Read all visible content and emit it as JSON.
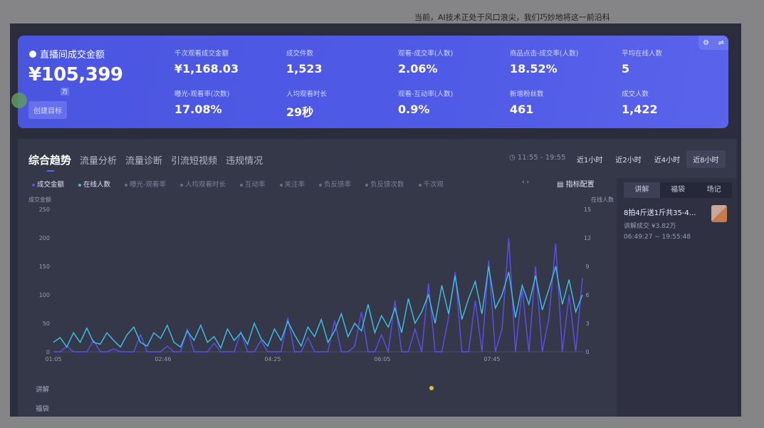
{
  "caption": "当前，AI技术正处于风口浪尖，我们巧妙地将这一前沿科",
  "summary": {
    "title": "直播间成交金额",
    "value": "¥105,399",
    "unit": "万",
    "goal_button": "创建目标",
    "metrics": [
      {
        "label": "千次观看成交金额",
        "value": "¥1,168.03"
      },
      {
        "label": "成交件数",
        "value": "1,523"
      },
      {
        "label": "观看-成交率(人数)",
        "value": "2.06%"
      },
      {
        "label": "商品点击-成交率(人数)",
        "value": "18.52%"
      },
      {
        "label": "平均在线人数",
        "value": "5"
      },
      {
        "label": "曝光-观看率(次数)",
        "value": "17.08%"
      },
      {
        "label": "人均观看时长",
        "value": "29秒"
      },
      {
        "label": "观看-互动率(人数)",
        "value": "0.9%"
      },
      {
        "label": "新增粉丝数",
        "value": "461"
      },
      {
        "label": "成交人数",
        "value": "1,422"
      }
    ]
  },
  "tabs": [
    "综合趋势",
    "流量分析",
    "流量诊断",
    "引流短视频",
    "违规情况"
  ],
  "time_range": "11:55 - 19:55",
  "range_buttons": [
    "近1小时",
    "近2小时",
    "近4小时",
    "近8小时"
  ],
  "selected_range": "近8小时",
  "legend": [
    {
      "label": "成交金额",
      "on": true
    },
    {
      "label": "在线人数",
      "on": true
    },
    {
      "label": "曝光-观看率",
      "on": false
    },
    {
      "label": "人均观看时长",
      "on": false
    },
    {
      "label": "互动率",
      "on": false
    },
    {
      "label": "关注率",
      "on": false
    },
    {
      "label": "负反馈率",
      "on": false
    },
    {
      "label": "负反馈次数",
      "on": false
    },
    {
      "label": "千次观",
      "on": false
    }
  ],
  "config_label": "指标配置",
  "side": {
    "tabs": [
      "讲解",
      "福袋",
      "场记"
    ],
    "item": {
      "title": "8拍4斤送1斤共35-4...",
      "sales": "讲解成交 ¥3.82万",
      "time": "06:49:27 ~ 19:55:48"
    }
  },
  "row_labels": [
    "讲解",
    "福袋"
  ],
  "colors": {
    "amount": "#5b4ff0",
    "online": "#3fc2e8",
    "card": "#4a55e0"
  },
  "chart_data": {
    "type": "line",
    "y_left_label": "成交金额",
    "y_right_label": "在线人数",
    "y_left_ticks": [
      "250",
      "200",
      "150",
      "100",
      "50",
      "0"
    ],
    "y_left_range": [
      0,
      250
    ],
    "y_right_ticks": [
      "15",
      "12",
      "9",
      "6",
      "3",
      "0"
    ],
    "y_right_range": [
      0,
      15
    ],
    "x_ticks": [
      "01:05",
      "02:46",
      "04:25",
      "06:05",
      "07:45"
    ],
    "series": [
      {
        "name": "成交金额",
        "axis": "left",
        "values": [
          0,
          0,
          10,
          0,
          0,
          0,
          20,
          0,
          0,
          5,
          0,
          0,
          0,
          30,
          0,
          0,
          0,
          10,
          0,
          0,
          40,
          0,
          0,
          0,
          15,
          0,
          0,
          0,
          35,
          0,
          0,
          20,
          0,
          0,
          0,
          60,
          0,
          0,
          25,
          0,
          0,
          0,
          55,
          0,
          0,
          10,
          70,
          0,
          0,
          30,
          0,
          90,
          0,
          0,
          40,
          0,
          120,
          0,
          0,
          60,
          140,
          0,
          0,
          90,
          0,
          160,
          0,
          40,
          200,
          0,
          110,
          0,
          150,
          0,
          60,
          190,
          0,
          100,
          0,
          130
        ]
      },
      {
        "name": "在线人数",
        "axis": "right",
        "values": [
          1,
          1.5,
          0.5,
          2,
          1,
          2.5,
          1,
          0.8,
          2,
          1.2,
          0.5,
          1.8,
          2.6,
          1,
          0.6,
          2,
          1.4,
          2.8,
          1,
          0.5,
          2.2,
          1.2,
          2.8,
          1,
          1.6,
          0.4,
          2.4,
          1.2,
          2,
          0.8,
          3,
          1.4,
          0.6,
          2.4,
          1.2,
          3.2,
          1.8,
          0.6,
          2.6,
          1.6,
          3.4,
          1,
          2.2,
          4,
          1.6,
          3,
          2.2,
          5,
          2,
          3.8,
          2.6,
          4.6,
          2,
          5.6,
          3,
          4.2,
          6,
          3,
          7,
          4,
          8,
          3.4,
          5.6,
          7.4,
          4,
          9,
          4.6,
          6,
          8.4,
          3.6,
          7,
          5,
          8,
          4.4,
          6.6,
          9,
          5,
          7.6,
          4.2,
          6
        ]
      }
    ]
  }
}
